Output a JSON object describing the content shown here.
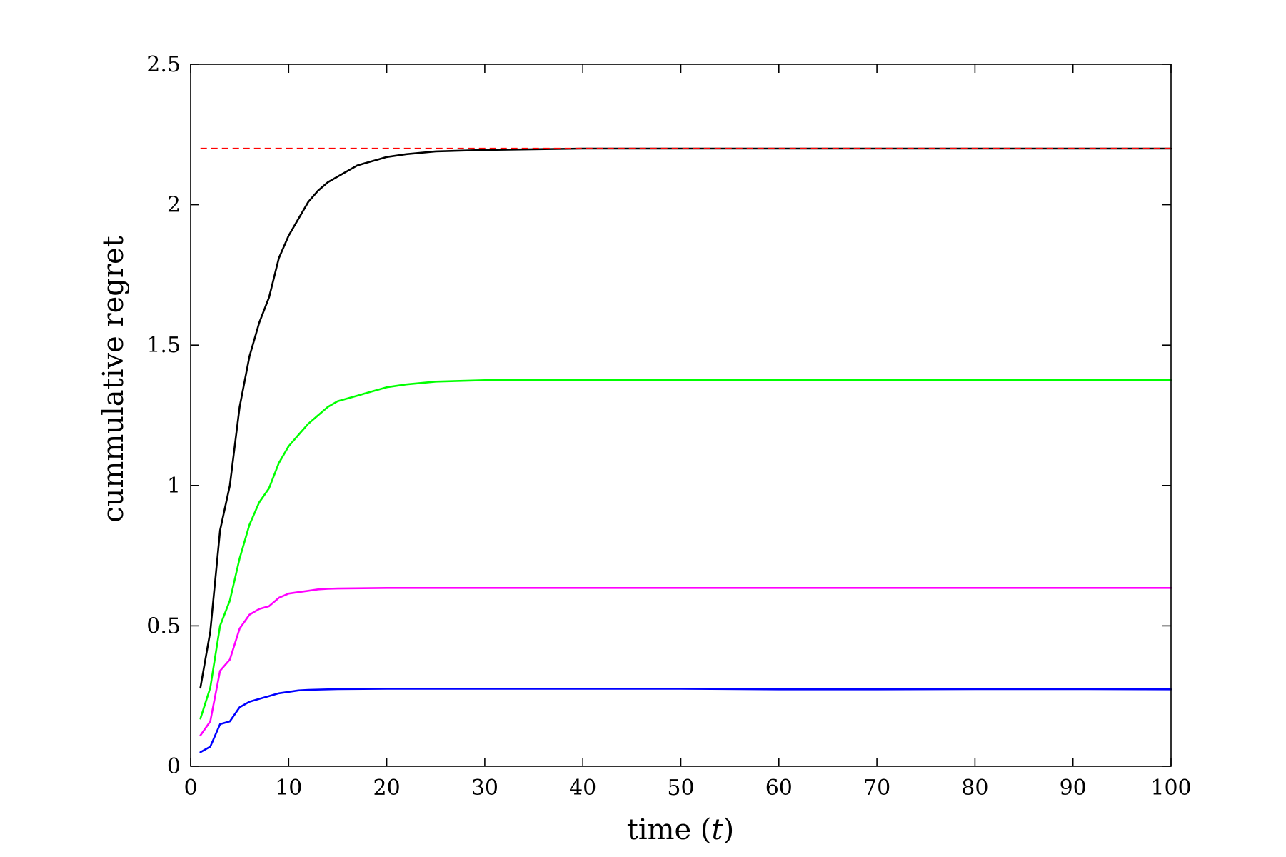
{
  "chart_data": {
    "type": "line",
    "title": "",
    "xlabel": "time (",
    "xlabel_var": "t",
    "xlabel_close": ")",
    "ylabel": "cummulative regret",
    "xlim": [
      0,
      100
    ],
    "ylim": [
      0,
      2.5
    ],
    "xticks": [
      0,
      10,
      20,
      30,
      40,
      50,
      60,
      70,
      80,
      90,
      100
    ],
    "yticks": [
      0,
      0.5,
      1,
      1.5,
      2,
      2.5
    ],
    "xtick_labels": [
      "0",
      "10",
      "20",
      "30",
      "40",
      "50",
      "60",
      "70",
      "80",
      "90",
      "100"
    ],
    "ytick_labels": [
      "0",
      "0.5",
      "1",
      "1.5",
      "2",
      "2.5"
    ],
    "grid": false,
    "legend": "none",
    "reference_lines": [
      {
        "y": 2.2,
        "x": [
          1,
          100
        ],
        "color": "#ff0000",
        "style": "dashed"
      }
    ],
    "series": [
      {
        "color": "#000000",
        "x": [
          1,
          2,
          3,
          4,
          5,
          6,
          7,
          8,
          9,
          10,
          11,
          12,
          13,
          14,
          15,
          16,
          17,
          18,
          19,
          20,
          22,
          25,
          30,
          40,
          50,
          60,
          70,
          80,
          90,
          100
        ],
        "y": [
          0.28,
          0.48,
          0.84,
          1.0,
          1.28,
          1.46,
          1.58,
          1.67,
          1.81,
          1.89,
          1.95,
          2.01,
          2.05,
          2.08,
          2.1,
          2.12,
          2.14,
          2.15,
          2.16,
          2.17,
          2.18,
          2.19,
          2.195,
          2.2,
          2.2,
          2.2,
          2.2,
          2.2,
          2.2,
          2.2
        ]
      },
      {
        "color": "#00ff00",
        "x": [
          1,
          2,
          3,
          4,
          5,
          6,
          7,
          8,
          9,
          10,
          11,
          12,
          13,
          14,
          15,
          16,
          17,
          18,
          20,
          22,
          25,
          30,
          40,
          50,
          60,
          70,
          80,
          90,
          100
        ],
        "y": [
          0.17,
          0.28,
          0.5,
          0.59,
          0.74,
          0.86,
          0.94,
          0.99,
          1.08,
          1.14,
          1.18,
          1.22,
          1.25,
          1.28,
          1.3,
          1.31,
          1.32,
          1.33,
          1.35,
          1.36,
          1.37,
          1.375,
          1.375,
          1.375,
          1.375,
          1.375,
          1.375,
          1.375,
          1.375
        ]
      },
      {
        "color": "#ff00ff",
        "x": [
          1,
          2,
          3,
          4,
          5,
          6,
          7,
          8,
          9,
          10,
          11,
          12,
          13,
          14,
          15,
          20,
          30,
          40,
          50,
          60,
          70,
          80,
          90,
          100
        ],
        "y": [
          0.11,
          0.16,
          0.34,
          0.38,
          0.49,
          0.54,
          0.56,
          0.57,
          0.6,
          0.615,
          0.62,
          0.625,
          0.63,
          0.632,
          0.633,
          0.635,
          0.635,
          0.635,
          0.635,
          0.635,
          0.635,
          0.635,
          0.635,
          0.635
        ]
      },
      {
        "color": "#0000ff",
        "x": [
          1,
          2,
          3,
          4,
          5,
          6,
          7,
          8,
          9,
          10,
          11,
          12,
          15,
          20,
          30,
          40,
          50,
          60,
          70,
          80,
          90,
          100
        ],
        "y": [
          0.05,
          0.07,
          0.15,
          0.16,
          0.21,
          0.23,
          0.24,
          0.25,
          0.26,
          0.265,
          0.27,
          0.272,
          0.275,
          0.276,
          0.276,
          0.276,
          0.276,
          0.274,
          0.274,
          0.275,
          0.275,
          0.274
        ]
      }
    ]
  }
}
